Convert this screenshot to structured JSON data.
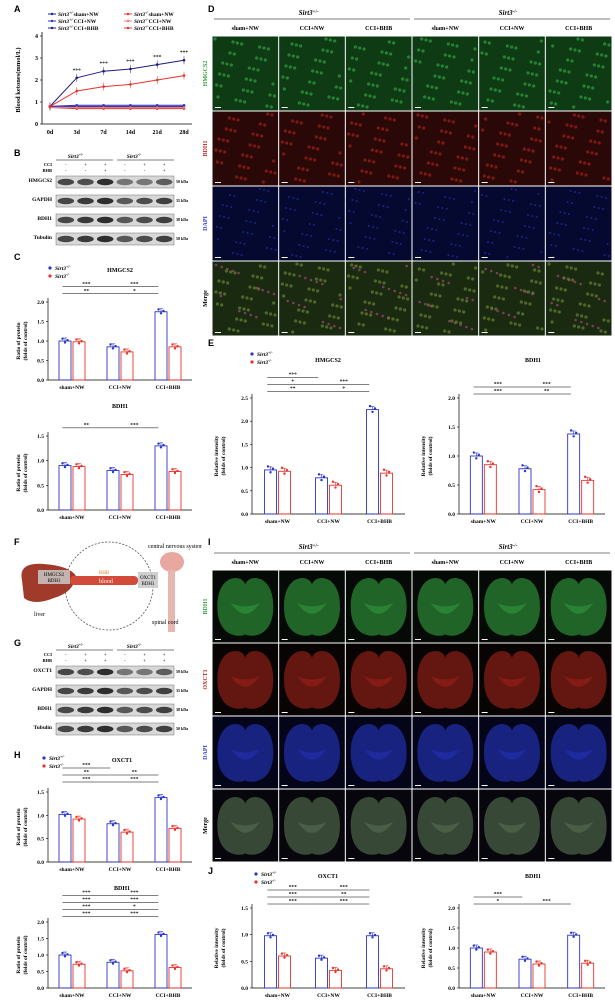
{
  "panels": {
    "A": "A",
    "B": "B",
    "C": "C",
    "D": "D",
    "E": "E",
    "F": "F",
    "G": "G",
    "H": "H",
    "I": "I",
    "J": "J"
  },
  "colors": {
    "blue": "#2b35c8",
    "red": "#e8332b",
    "dark_blue": "#1c1c80",
    "light_red": "#f07b6e",
    "blue_dark": "#1a1fa0",
    "green": "#3bbd4a",
    "dapi": "#2a3ad6"
  },
  "panel_A": {
    "legend": [
      {
        "genotype": "Sirt3",
        "sup": "+/-",
        "group": "sham+NW",
        "color": "#1a1fa0"
      },
      {
        "genotype": "Sirt3",
        "sup": "+/-",
        "group": "CCI+NW",
        "color": "#2b35c8"
      },
      {
        "genotype": "Sirt3",
        "sup": "+/-",
        "group": "CCI+BHB",
        "color": "#1c1c80"
      },
      {
        "genotype": "Sirt3",
        "sup": "-/-",
        "group": "sham+NW",
        "color": "#e8332b"
      },
      {
        "genotype": "Sirt3",
        "sup": "-/-",
        "group": "CCI+NW",
        "color": "#f07b6e"
      },
      {
        "genotype": "Sirt3",
        "sup": "-/-",
        "group": "CCI+BHB",
        "color": "#e8332b"
      }
    ]
  },
  "chart_data": [
    {
      "type": "line",
      "panel": "A",
      "ylabel": "Blood ketones(mmol/L)",
      "x": [
        "0d",
        "3d",
        "7d",
        "14d",
        "21d",
        "28d"
      ],
      "ylim": [
        0,
        4
      ],
      "yticks": [
        "0",
        "1",
        "2",
        "3",
        "4"
      ],
      "annotations": [
        "***",
        "***",
        "***",
        "***",
        "***"
      ],
      "series": [
        {
          "name": "Sirt3+/- sham+NW",
          "values": [
            0.8,
            0.8,
            0.8,
            0.8,
            0.8,
            0.8
          ]
        },
        {
          "name": "Sirt3+/- CCI+NW",
          "values": [
            0.8,
            0.85,
            0.85,
            0.85,
            0.85,
            0.85
          ]
        },
        {
          "name": "Sirt3+/- CCI+BHB",
          "values": [
            0.8,
            2.1,
            2.4,
            2.5,
            2.7,
            2.9
          ]
        },
        {
          "name": "Sirt3-/- sham+NW",
          "values": [
            0.75,
            0.7,
            0.7,
            0.7,
            0.7,
            0.7
          ]
        },
        {
          "name": "Sirt3-/- CCI+NW",
          "values": [
            0.75,
            0.75,
            0.75,
            0.75,
            0.75,
            0.75
          ]
        },
        {
          "name": "Sirt3-/- CCI+BHB",
          "values": [
            0.8,
            1.5,
            1.7,
            1.8,
            2.0,
            2.2
          ]
        }
      ]
    },
    {
      "type": "bar",
      "panel": "C-top",
      "title": "HMGCS2",
      "ylabel": "Ratio of protein\n(folds of control)",
      "categories": [
        "sham+NW",
        "CCI+NW",
        "CCI+BHB"
      ],
      "ylim": [
        0,
        2.0
      ],
      "yticks": [
        "0.0",
        "0.5",
        "1.0",
        "1.5",
        "2.0"
      ],
      "series": [
        {
          "name": "Sirt3+/-",
          "values": [
            1.0,
            0.85,
            1.75
          ]
        },
        {
          "name": "Sirt3-/-",
          "values": [
            0.98,
            0.72,
            0.85
          ]
        }
      ],
      "brackets": [
        "**",
        "*",
        "***",
        "***"
      ]
    },
    {
      "type": "bar",
      "panel": "C-bottom",
      "title": "BDH1",
      "ylabel": "Ratio of protein\n(folds of control)",
      "categories": [
        "sham+NW",
        "CCI+NW",
        "CCI+BHB"
      ],
      "ylim": [
        0,
        1.5
      ],
      "yticks": [
        "0.0",
        "0.5",
        "1.0",
        "1.5"
      ],
      "series": [
        {
          "name": "Sirt3+/-",
          "values": [
            0.9,
            0.8,
            1.3
          ]
        },
        {
          "name": "Sirt3-/-",
          "values": [
            0.88,
            0.72,
            0.78
          ]
        }
      ],
      "brackets": [
        "**",
        "***"
      ]
    },
    {
      "type": "bar",
      "panel": "E-left",
      "title": "HMGCS2",
      "ylabel": "Relative intensity\n(folds of control)",
      "categories": [
        "sham+NW",
        "CCI+NW",
        "CCI+BHB"
      ],
      "ylim": [
        0,
        2.5
      ],
      "yticks": [
        "0.0",
        "0.5",
        "1.0",
        "1.5",
        "2.0",
        "2.5"
      ],
      "series": [
        {
          "name": "Sirt3+/-",
          "values": [
            0.95,
            0.78,
            2.25
          ]
        },
        {
          "name": "Sirt3-/-",
          "values": [
            0.92,
            0.62,
            0.88
          ]
        }
      ],
      "brackets": [
        "**",
        "*",
        "*",
        "***",
        "***"
      ]
    },
    {
      "type": "bar",
      "panel": "E-right",
      "title": "BDH1",
      "ylabel": "Relative intensity\n(folds of control)",
      "categories": [
        "sham+NW",
        "CCI+NW",
        "CCI+BHB"
      ],
      "ylim": [
        0,
        2.0
      ],
      "yticks": [
        "0.0",
        "0.5",
        "1.0",
        "1.5",
        "2.0"
      ],
      "series": [
        {
          "name": "Sirt3+/-",
          "values": [
            1.0,
            0.78,
            1.38
          ]
        },
        {
          "name": "Sirt3-/-",
          "values": [
            0.85,
            0.42,
            0.58
          ]
        }
      ],
      "brackets": [
        "***",
        "**",
        "***",
        "***"
      ]
    },
    {
      "type": "bar",
      "panel": "H-top",
      "title": "OXCT1",
      "ylabel": "Ratio of protein\n(folds of control)",
      "categories": [
        "sham+NW",
        "CCI+NW",
        "CCI+BHB"
      ],
      "ylim": [
        0,
        1.5
      ],
      "yticks": [
        "0.0",
        "0.5",
        "1.0",
        "1.5"
      ],
      "series": [
        {
          "name": "Sirt3+/-",
          "values": [
            1.02,
            0.82,
            1.38
          ]
        },
        {
          "name": "Sirt3-/-",
          "values": [
            0.92,
            0.64,
            0.72
          ]
        }
      ],
      "brackets": [
        "***",
        "***",
        "**",
        "**",
        "***"
      ]
    },
    {
      "type": "bar",
      "panel": "H-bottom",
      "title": "BDH1",
      "ylabel": "Ratio of protein\n(folds of control)",
      "categories": [
        "sham+NW",
        "CCI+NW",
        "CCI+BHB"
      ],
      "ylim": [
        0,
        2.0
      ],
      "yticks": [
        "0.0",
        "0.5",
        "1.0",
        "1.5",
        "2.0"
      ],
      "series": [
        {
          "name": "Sirt3+/-",
          "values": [
            1.0,
            0.78,
            1.62
          ]
        },
        {
          "name": "Sirt3-/-",
          "values": [
            0.72,
            0.52,
            0.62
          ]
        }
      ],
      "brackets": [
        "***",
        "***",
        "***",
        "*",
        "***",
        "***",
        "***",
        "***"
      ]
    },
    {
      "type": "bar",
      "panel": "J-left",
      "title": "OXCT1",
      "ylabel": "Relative intensity\n(folds of control)",
      "categories": [
        "sham+NW",
        "CCI+NW",
        "CCI+BHB"
      ],
      "ylim": [
        0,
        1.5
      ],
      "yticks": [
        "0.0",
        "0.5",
        "1.0",
        "1.5"
      ],
      "series": [
        {
          "name": "Sirt3+/-",
          "values": [
            0.98,
            0.56,
            0.98
          ]
        },
        {
          "name": "Sirt3-/-",
          "values": [
            0.6,
            0.33,
            0.36
          ]
        }
      ],
      "brackets": [
        "***",
        "***",
        "***",
        "**",
        "***",
        "***"
      ]
    },
    {
      "type": "bar",
      "panel": "J-right",
      "title": "BDH1",
      "ylabel": "Relative intensity\n(folds of control)",
      "categories": [
        "sham+NW",
        "CCI+NW",
        "CCI+BHB"
      ],
      "ylim": [
        0,
        2.0
      ],
      "yticks": [
        "0.0",
        "0.5",
        "1.0",
        "1.5",
        "2.0"
      ],
      "series": [
        {
          "name": "Sirt3+/-",
          "values": [
            1.0,
            0.72,
            1.32
          ]
        },
        {
          "name": "Sirt3-/-",
          "values": [
            0.9,
            0.6,
            0.62
          ]
        }
      ],
      "brackets": [
        "*",
        "***",
        "***"
      ]
    }
  ],
  "panel_B": {
    "header_left": "Sirt3+/-",
    "header_right": "Sirt3-/-",
    "row_labels": [
      "CCI",
      "BHB"
    ],
    "row_values": [
      [
        "-",
        "+",
        "+",
        "-",
        "+",
        "+"
      ],
      [
        "-",
        "-",
        "+",
        "-",
        "-",
        "+"
      ]
    ],
    "bands": [
      {
        "name": "HMGCS2",
        "kda": "50 kDa"
      },
      {
        "name": "GAPDH",
        "kda": "35 kDa"
      },
      {
        "name": "BDH1",
        "kda": "38 kDa"
      },
      {
        "name": "Tubulin",
        "kda": "50 kDa"
      }
    ]
  },
  "panel_G": {
    "header_left": "Sirt3+/-",
    "header_right": "Sirt3-/-",
    "row_labels": [
      "CCI",
      "BHB"
    ],
    "bands": [
      {
        "name": "OXCT1",
        "kda": "50 kDa"
      },
      {
        "name": "GAPDH",
        "kda": "35 kDa"
      },
      {
        "name": "BDH1",
        "kda": "38 kDa"
      },
      {
        "name": "Tubulin",
        "kda": "50 kDa"
      }
    ]
  },
  "panel_D": {
    "header_left": "Sirt3+/-",
    "header_right": "Sirt3-/-",
    "columns": [
      "sham+NW",
      "CCI+NW",
      "CCI+BHB",
      "sham+NW",
      "CCI+NW",
      "CCI+BHB"
    ],
    "rows": [
      "HMGCS2",
      "BDH1",
      "DAPI",
      "Merge"
    ]
  },
  "panel_I": {
    "header_left": "Sirt3+/-",
    "header_right": "Sirt3-/-",
    "columns": [
      "sham+NW",
      "CCI+NW",
      "CCI+BHB",
      "sham+NW",
      "CCI+NW",
      "CCI+BHB"
    ],
    "rows": [
      "BDH1",
      "OXCT1",
      "DAPI",
      "Merge"
    ]
  },
  "legend_pair": {
    "plus": "Sirt3+/-",
    "minus": "Sirt3-/-"
  },
  "panel_F": {
    "liver": "liver",
    "hmgcs2": "HMGCS2",
    "bdh1": "BDH1",
    "bhb": "BHB",
    "blood": "blood",
    "oxct1": "OXCT1",
    "bdh1_b": "BDH1",
    "cns": "central nervous system",
    "spinal": "spinal cord"
  }
}
